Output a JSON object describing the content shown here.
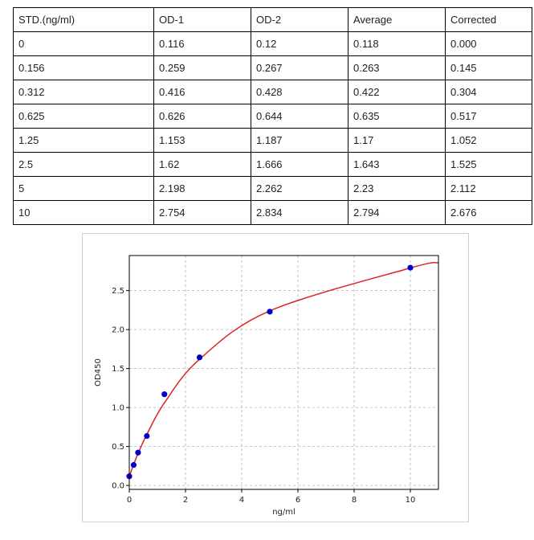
{
  "table": {
    "headers": [
      "STD.(ng/ml)",
      "OD-1",
      "OD-2",
      "Average",
      "Corrected"
    ],
    "rows": [
      [
        "0",
        "0.116",
        "0.12",
        "0.118",
        "0.000"
      ],
      [
        "0.156",
        "0.259",
        "0.267",
        "0.263",
        "0.145"
      ],
      [
        "0.312",
        "0.416",
        "0.428",
        "0.422",
        "0.304"
      ],
      [
        "0.625",
        "0.626",
        "0.644",
        "0.635",
        "0.517"
      ],
      [
        "1.25",
        "1.153",
        "1.187",
        "1.17",
        "1.052"
      ],
      [
        "2.5",
        "1.62",
        "1.666",
        "1.643",
        "1.525"
      ],
      [
        "5",
        "2.198",
        "2.262",
        "2.23",
        "2.112"
      ],
      [
        "10",
        "2.754",
        "2.834",
        "2.794",
        "2.676"
      ]
    ]
  },
  "chart_data": {
    "type": "scatter",
    "xlabel": "ng/ml",
    "ylabel": "OD450",
    "xlim": [
      0,
      11
    ],
    "ylim": [
      -0.05,
      2.95
    ],
    "xticks": [
      0,
      2,
      4,
      6,
      8,
      10
    ],
    "yticks": [
      0.0,
      0.5,
      1.0,
      1.5,
      2.0,
      2.5
    ],
    "ytick_labels": [
      "0.0",
      "0.5",
      "1.0",
      "1.5",
      "2.0",
      "2.5"
    ],
    "grid": true,
    "series": [
      {
        "kind": "points",
        "color": "#0000cc",
        "x": [
          0,
          0.156,
          0.312,
          0.625,
          1.25,
          2.5,
          5,
          10
        ],
        "y": [
          0.118,
          0.263,
          0.422,
          0.635,
          1.17,
          1.643,
          2.23,
          2.794
        ]
      },
      {
        "kind": "fit-curve",
        "color": "#dd2222",
        "x": [
          0,
          0.156,
          0.312,
          0.625,
          1.25,
          2.5,
          5,
          10,
          11
        ],
        "y": [
          0.118,
          0.27,
          0.41,
          0.655,
          1.06,
          1.62,
          2.24,
          2.79,
          2.86
        ]
      }
    ]
  }
}
